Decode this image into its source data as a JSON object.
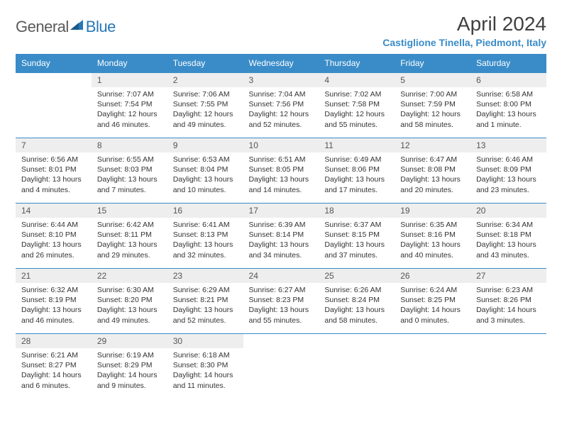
{
  "logo": {
    "text1": "General",
    "text2": "Blue"
  },
  "title": "April 2024",
  "subtitle": "Castiglione Tinella, Piedmont, Italy",
  "colors": {
    "header_bg": "#3a8cc8",
    "header_text": "#ffffff",
    "daynum_bg": "#eeeeee",
    "border": "#3a8cc8",
    "logo_gray": "#5a5a5a",
    "logo_blue": "#2878b8",
    "title_color": "#404040",
    "subtitle_color": "#3a8cc8",
    "body_text": "#333333",
    "background": "#ffffff"
  },
  "typography": {
    "title_fontsize": 28,
    "subtitle_fontsize": 14,
    "weekday_fontsize": 12,
    "daynum_fontsize": 12,
    "cell_fontsize": 10.5
  },
  "weekdays": [
    "Sunday",
    "Monday",
    "Tuesday",
    "Wednesday",
    "Thursday",
    "Friday",
    "Saturday"
  ],
  "weeks": [
    [
      null,
      {
        "n": "1",
        "sr": "7:07 AM",
        "ss": "7:54 PM",
        "dl": "12 hours and 46 minutes."
      },
      {
        "n": "2",
        "sr": "7:06 AM",
        "ss": "7:55 PM",
        "dl": "12 hours and 49 minutes."
      },
      {
        "n": "3",
        "sr": "7:04 AM",
        "ss": "7:56 PM",
        "dl": "12 hours and 52 minutes."
      },
      {
        "n": "4",
        "sr": "7:02 AM",
        "ss": "7:58 PM",
        "dl": "12 hours and 55 minutes."
      },
      {
        "n": "5",
        "sr": "7:00 AM",
        "ss": "7:59 PM",
        "dl": "12 hours and 58 minutes."
      },
      {
        "n": "6",
        "sr": "6:58 AM",
        "ss": "8:00 PM",
        "dl": "13 hours and 1 minute."
      }
    ],
    [
      {
        "n": "7",
        "sr": "6:56 AM",
        "ss": "8:01 PM",
        "dl": "13 hours and 4 minutes."
      },
      {
        "n": "8",
        "sr": "6:55 AM",
        "ss": "8:03 PM",
        "dl": "13 hours and 7 minutes."
      },
      {
        "n": "9",
        "sr": "6:53 AM",
        "ss": "8:04 PM",
        "dl": "13 hours and 10 minutes."
      },
      {
        "n": "10",
        "sr": "6:51 AM",
        "ss": "8:05 PM",
        "dl": "13 hours and 14 minutes."
      },
      {
        "n": "11",
        "sr": "6:49 AM",
        "ss": "8:06 PM",
        "dl": "13 hours and 17 minutes."
      },
      {
        "n": "12",
        "sr": "6:47 AM",
        "ss": "8:08 PM",
        "dl": "13 hours and 20 minutes."
      },
      {
        "n": "13",
        "sr": "6:46 AM",
        "ss": "8:09 PM",
        "dl": "13 hours and 23 minutes."
      }
    ],
    [
      {
        "n": "14",
        "sr": "6:44 AM",
        "ss": "8:10 PM",
        "dl": "13 hours and 26 minutes."
      },
      {
        "n": "15",
        "sr": "6:42 AM",
        "ss": "8:11 PM",
        "dl": "13 hours and 29 minutes."
      },
      {
        "n": "16",
        "sr": "6:41 AM",
        "ss": "8:13 PM",
        "dl": "13 hours and 32 minutes."
      },
      {
        "n": "17",
        "sr": "6:39 AM",
        "ss": "8:14 PM",
        "dl": "13 hours and 34 minutes."
      },
      {
        "n": "18",
        "sr": "6:37 AM",
        "ss": "8:15 PM",
        "dl": "13 hours and 37 minutes."
      },
      {
        "n": "19",
        "sr": "6:35 AM",
        "ss": "8:16 PM",
        "dl": "13 hours and 40 minutes."
      },
      {
        "n": "20",
        "sr": "6:34 AM",
        "ss": "8:18 PM",
        "dl": "13 hours and 43 minutes."
      }
    ],
    [
      {
        "n": "21",
        "sr": "6:32 AM",
        "ss": "8:19 PM",
        "dl": "13 hours and 46 minutes."
      },
      {
        "n": "22",
        "sr": "6:30 AM",
        "ss": "8:20 PM",
        "dl": "13 hours and 49 minutes."
      },
      {
        "n": "23",
        "sr": "6:29 AM",
        "ss": "8:21 PM",
        "dl": "13 hours and 52 minutes."
      },
      {
        "n": "24",
        "sr": "6:27 AM",
        "ss": "8:23 PM",
        "dl": "13 hours and 55 minutes."
      },
      {
        "n": "25",
        "sr": "6:26 AM",
        "ss": "8:24 PM",
        "dl": "13 hours and 58 minutes."
      },
      {
        "n": "26",
        "sr": "6:24 AM",
        "ss": "8:25 PM",
        "dl": "14 hours and 0 minutes."
      },
      {
        "n": "27",
        "sr": "6:23 AM",
        "ss": "8:26 PM",
        "dl": "14 hours and 3 minutes."
      }
    ],
    [
      {
        "n": "28",
        "sr": "6:21 AM",
        "ss": "8:27 PM",
        "dl": "14 hours and 6 minutes."
      },
      {
        "n": "29",
        "sr": "6:19 AM",
        "ss": "8:29 PM",
        "dl": "14 hours and 9 minutes."
      },
      {
        "n": "30",
        "sr": "6:18 AM",
        "ss": "8:30 PM",
        "dl": "14 hours and 11 minutes."
      },
      null,
      null,
      null,
      null
    ]
  ]
}
